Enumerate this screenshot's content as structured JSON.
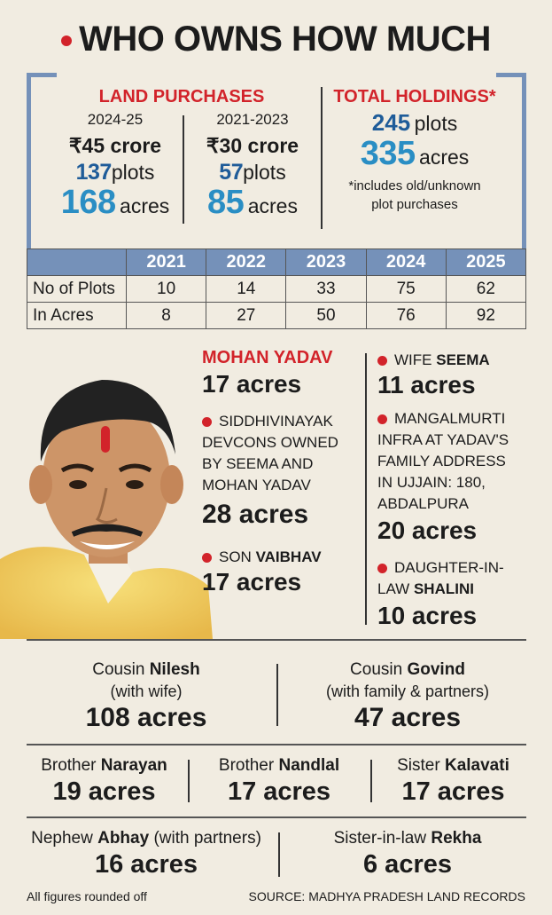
{
  "title": "WHO OWNS HOW MUCH",
  "land_purchases": {
    "heading": "LAND PURCHASES",
    "p1": {
      "period": "2024-25",
      "amount": "₹45 crore",
      "plots_num": "137",
      "plots_unit": "plots",
      "acres_num": "168",
      "acres_unit": "acres"
    },
    "p2": {
      "period": "2021-2023",
      "amount": "₹30 crore",
      "plots_num": "57",
      "plots_unit": "plots",
      "acres_num": "85",
      "acres_unit": "acres"
    }
  },
  "total_holdings": {
    "heading": "TOTAL HOLDINGS*",
    "plots_num": "245",
    "plots_unit": "plots",
    "acres_num": "335",
    "acres_unit": "acres",
    "note_line1": "*includes old/unknown",
    "note_line2": "plot purchases"
  },
  "table": {
    "years": [
      "2021",
      "2022",
      "2023",
      "2024",
      "2025"
    ],
    "rows": [
      {
        "label": "No of Plots",
        "values": [
          "10",
          "14",
          "33",
          "75",
          "62"
        ]
      },
      {
        "label": "In Acres",
        "values": [
          "8",
          "27",
          "50",
          "76",
          "92"
        ]
      }
    ]
  },
  "mohan": {
    "name": "MOHAN YADAV",
    "acres": "17 acres"
  },
  "siddhi": {
    "line1": "SIDDHIVINAYAK",
    "line2": "DEVCONS OWNED",
    "line3": "BY SEEMA AND",
    "line4": "MOHAN YADAV",
    "acres": "28 acres"
  },
  "son": {
    "prefix": "SON",
    "name": "VAIBHAV",
    "acres": "17 acres"
  },
  "wife": {
    "prefix": "WIFE",
    "name": "SEEMA",
    "acres": "11 acres"
  },
  "mangal": {
    "line1": "MANGALMURTI",
    "line2": "INFRA AT YADAV'S",
    "line3": "FAMILY ADDRESS",
    "line4": "IN UJJAIN: 180,",
    "line5": "ABDALPURA",
    "acres": "20 acres"
  },
  "daughter": {
    "line1": "DAUGHTER-IN-",
    "prefix2": "LAW",
    "name": "SHALINI",
    "acres": "10 acres"
  },
  "nilesh": {
    "prefix": "Cousin",
    "name": "Nilesh",
    "sub": "(with wife)",
    "acres": "108 acres"
  },
  "govind": {
    "prefix": "Cousin",
    "name": "Govind",
    "sub": "(with family & partners)",
    "acres": "47 acres"
  },
  "narayan": {
    "prefix": "Brother",
    "name": "Narayan",
    "acres": "19 acres"
  },
  "nandlal": {
    "prefix": "Brother",
    "name": "Nandlal",
    "acres": "17 acres"
  },
  "kalavati": {
    "prefix": "Sister",
    "name": "Kalavati",
    "acres": "17 acres"
  },
  "abhay": {
    "prefix": "Nephew",
    "name": "Abhay",
    "sub": "(with partners)",
    "acres": "16 acres"
  },
  "rekha": {
    "prefix": "Sister-in-law",
    "name": "Rekha",
    "acres": "6 acres"
  },
  "footer": {
    "left": "All figures rounded off",
    "right": "SOURCE: MADHYA PRADESH LAND RECORDS"
  },
  "colors": {
    "red": "#d2232a",
    "blue": "#1f5c99",
    "cyan": "#2a8ec4",
    "table_header": "#7591b9",
    "background": "#f1ece1"
  }
}
